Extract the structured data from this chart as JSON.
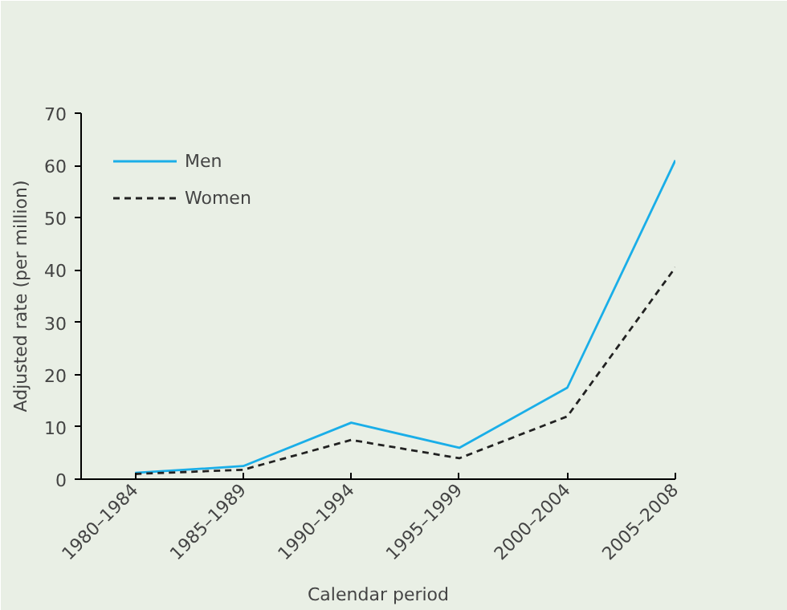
{
  "chart_data": {
    "type": "line",
    "xlabel": "Calendar period",
    "ylabel": "Adjusted rate (per million)",
    "categories": [
      "1980–1984",
      "1985–1989",
      "1990–1994",
      "1995–1999",
      "2000–2004",
      "2005–2008"
    ],
    "series": [
      {
        "name": "Men",
        "color": "#1aaee8",
        "values": [
          1.2,
          2.5,
          10.8,
          6,
          17.5,
          61
        ],
        "line_style": "solid"
      },
      {
        "name": "Women",
        "color": "#222222",
        "values": [
          1,
          1.8,
          7.5,
          4,
          12,
          40.5
        ],
        "line_style": "dashed"
      }
    ],
    "ylim": [
      0,
      70
    ],
    "yticks": [
      0,
      10,
      20,
      30,
      40,
      50,
      60,
      70
    ],
    "grid": false,
    "legend": "top left",
    "marker": "none"
  }
}
